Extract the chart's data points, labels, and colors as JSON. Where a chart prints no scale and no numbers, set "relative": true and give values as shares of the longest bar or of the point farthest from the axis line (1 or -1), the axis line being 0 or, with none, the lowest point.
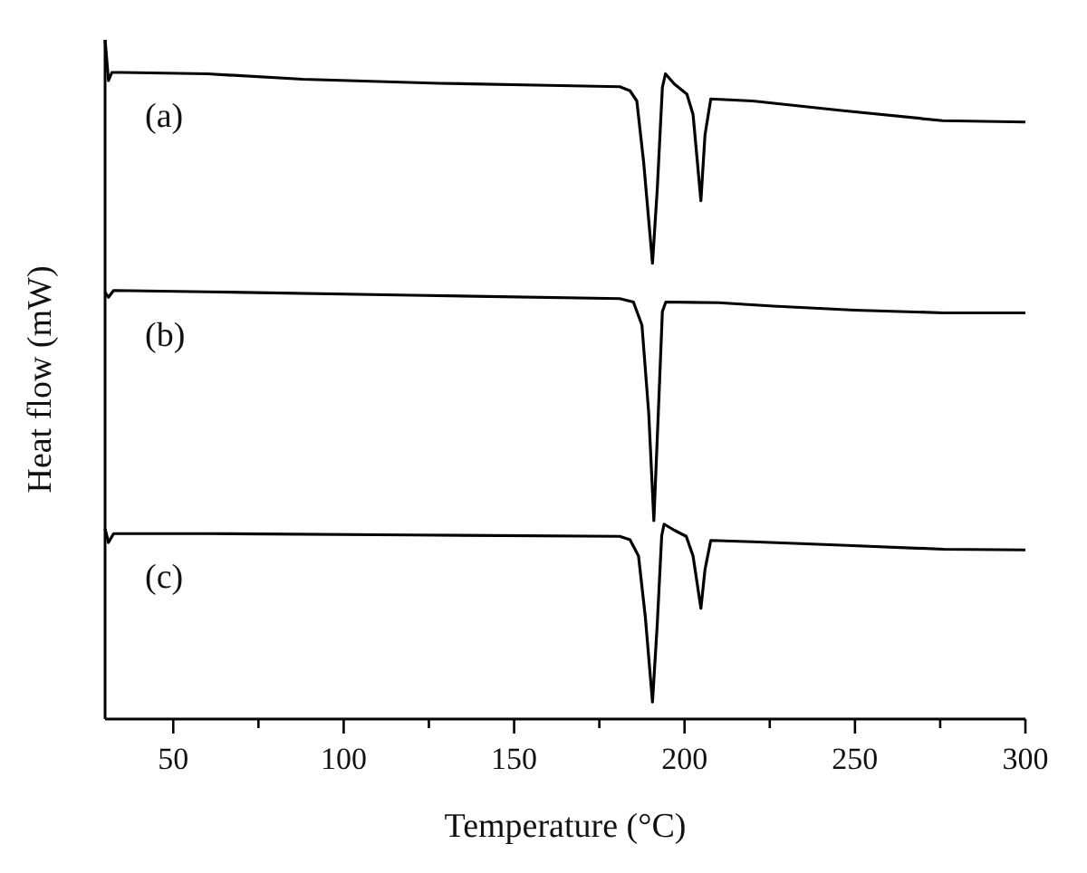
{
  "chart_data": {
    "type": "line",
    "relative": true,
    "xlabel": "Temperature (°C)",
    "ylabel": "Heat flow (mW)",
    "xlim": [
      30,
      300
    ],
    "xticks": [
      50,
      {
        "value": 75,
        "label": null
      },
      100,
      {
        "value": 125,
        "label": null
      },
      150,
      {
        "value": 175,
        "label": null
      },
      200,
      {
        "value": 225,
        "label": null
      },
      250,
      {
        "value": 275,
        "label": null
      },
      300
    ],
    "marker": "none",
    "line_style": "solid",
    "series": [
      {
        "name": "(a)",
        "color": "#000000",
        "x": [
          30,
          31,
          32,
          35,
          60,
          88,
          128,
          160,
          181,
          184,
          186,
          188,
          190.6,
          192,
          193.5,
          194.4,
          197,
          200.7,
          202.5,
          204.8,
          206,
          207.7,
          220,
          246,
          275.7,
          300
        ],
        "values": [
          1.0,
          0.94,
          0.952,
          0.952,
          0.95,
          0.942,
          0.936,
          0.933,
          0.931,
          0.925,
          0.91,
          0.82,
          0.671,
          0.78,
          0.93,
          0.95,
          0.935,
          0.92,
          0.89,
          0.763,
          0.86,
          0.913,
          0.91,
          0.896,
          0.881,
          0.879
        ]
      },
      {
        "name": "(b)",
        "color": "#000000",
        "x": [
          30,
          31,
          32.5,
          60,
          120,
          181,
          185,
          187.5,
          189.5,
          191,
          192.3,
          193.5,
          194.5,
          210,
          226,
          250,
          276,
          300
        ],
        "values": [
          0.628,
          0.621,
          0.631,
          0.629,
          0.624,
          0.619,
          0.614,
          0.58,
          0.45,
          0.292,
          0.45,
          0.6,
          0.614,
          0.613,
          0.608,
          0.602,
          0.598,
          0.598
        ]
      },
      {
        "name": "(c)",
        "color": "#000000",
        "x": [
          30,
          31,
          32.5,
          60,
          120,
          181,
          184,
          186.5,
          188.5,
          190.6,
          192,
          193.3,
          194,
          197,
          200.5,
          202.5,
          204.8,
          206,
          207.7,
          220,
          246,
          276,
          300
        ],
        "values": [
          0.28,
          0.26,
          0.273,
          0.273,
          0.271,
          0.269,
          0.264,
          0.24,
          0.15,
          0.025,
          0.14,
          0.27,
          0.287,
          0.278,
          0.269,
          0.24,
          0.163,
          0.22,
          0.263,
          0.261,
          0.256,
          0.25,
          0.249
        ]
      }
    ]
  }
}
